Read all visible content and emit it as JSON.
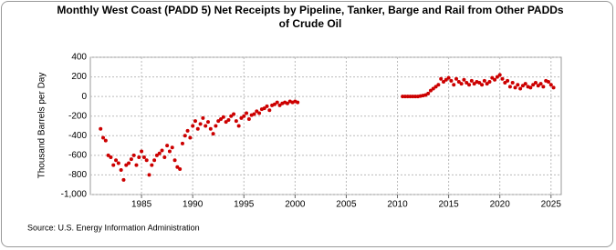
{
  "chart_data": {
    "type": "scatter",
    "title": "Monthly West Coast (PADD 5) Net Receipts by Pipeline, Tanker, Barge and Rail from Other PADDs of Crude Oil",
    "y_label": "Thousand Barrels per Day",
    "source": "Source: U.S. Energy Information Administration",
    "color": "#cc0000",
    "grid": true,
    "xlim": [
      1980,
      2026
    ],
    "xticks": [
      1985,
      1990,
      1995,
      2000,
      2005,
      2010,
      2015,
      2020,
      2025
    ],
    "ylim": [
      -1000,
      400
    ],
    "yticks": [
      400,
      200,
      0,
      -200,
      -400,
      -600,
      -800,
      {
        "value": -1000,
        "label": "-1,000"
      }
    ],
    "x": [
      1981,
      1981.25,
      1981.5,
      1981.75,
      1982,
      1982.25,
      1982.5,
      1982.75,
      1983,
      1983.25,
      1983.5,
      1983.75,
      1984,
      1984.25,
      1984.5,
      1984.75,
      1985,
      1985.25,
      1985.5,
      1985.75,
      1986,
      1986.25,
      1986.5,
      1986.75,
      1987,
      1987.25,
      1987.5,
      1987.75,
      1988,
      1988.25,
      1988.5,
      1988.75,
      1989,
      1989.25,
      1989.5,
      1989.75,
      1990,
      1990.25,
      1990.5,
      1990.75,
      1991,
      1991.25,
      1991.5,
      1991.75,
      1992,
      1992.25,
      1992.5,
      1992.75,
      1993,
      1993.25,
      1993.5,
      1993.75,
      1994,
      1994.25,
      1994.5,
      1994.75,
      1995,
      1995.25,
      1995.5,
      1995.75,
      1996,
      1996.25,
      1996.5,
      1996.75,
      1997,
      1997.25,
      1997.5,
      1997.75,
      1998,
      1998.25,
      1998.5,
      1998.75,
      1999,
      1999.25,
      1999.5,
      1999.75,
      2000,
      2000.25,
      2010.5,
      2010.75,
      2011,
      2011.25,
      2011.5,
      2011.75,
      2012,
      2012.25,
      2012.5,
      2012.75,
      2013,
      2013.25,
      2013.5,
      2013.75,
      2014,
      2014.25,
      2014.5,
      2014.75,
      2015,
      2015.25,
      2015.5,
      2015.75,
      2016,
      2016.25,
      2016.5,
      2016.75,
      2017,
      2017.25,
      2017.5,
      2017.75,
      2018,
      2018.25,
      2018.5,
      2018.75,
      2019,
      2019.25,
      2019.5,
      2019.75,
      2020,
      2020.25,
      2020.5,
      2020.75,
      2021,
      2021.25,
      2021.5,
      2021.75,
      2022,
      2022.25,
      2022.5,
      2022.75,
      2023,
      2023.25,
      2023.5,
      2023.75,
      2024,
      2024.25,
      2024.5,
      2024.75,
      2025,
      2025.25
    ],
    "values": [
      -330,
      -420,
      -450,
      -600,
      -620,
      -700,
      -650,
      -680,
      -750,
      -850,
      -700,
      -680,
      -640,
      -600,
      -700,
      -620,
      -560,
      -620,
      -650,
      -800,
      -700,
      -650,
      -600,
      -580,
      -550,
      -620,
      -500,
      -560,
      -520,
      -650,
      -720,
      -740,
      -480,
      -400,
      -350,
      -420,
      -300,
      -250,
      -330,
      -280,
      -220,
      -300,
      -260,
      -330,
      -380,
      -300,
      -250,
      -230,
      -210,
      -260,
      -240,
      -200,
      -180,
      -250,
      -300,
      -220,
      -200,
      -170,
      -230,
      -190,
      -180,
      -150,
      -170,
      -130,
      -120,
      -100,
      -140,
      -90,
      -80,
      -60,
      -90,
      -70,
      -60,
      -70,
      -50,
      -60,
      -50,
      -60,
      0,
      0,
      0,
      0,
      0,
      0,
      0,
      5,
      10,
      15,
      30,
      60,
      80,
      100,
      120,
      180,
      150,
      170,
      190,
      160,
      120,
      180,
      150,
      130,
      170,
      140,
      120,
      160,
      130,
      150,
      140,
      120,
      160,
      130,
      150,
      190,
      170,
      200,
      220,
      180,
      140,
      160,
      100,
      140,
      90,
      120,
      80,
      110,
      130,
      100,
      90,
      120,
      140,
      110,
      130,
      100,
      160,
      150,
      120,
      90
    ]
  }
}
